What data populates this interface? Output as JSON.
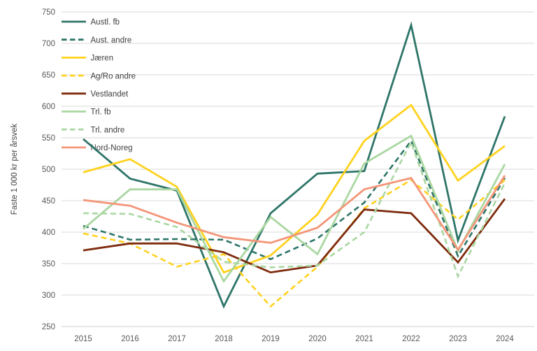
{
  "chart_data": {
    "type": "line",
    "title": "",
    "xlabel": "",
    "ylabel": "Faste 1 000 kr per årsvek",
    "x": [
      2015,
      2016,
      2017,
      2018,
      2019,
      2020,
      2021,
      2022,
      2023,
      2024
    ],
    "ylim": [
      250,
      750
    ],
    "yticks": [
      250,
      300,
      350,
      400,
      450,
      500,
      550,
      600,
      650,
      700,
      750
    ],
    "grid": true,
    "legend_position": "top-left",
    "series": [
      {
        "name": "Austl. fb",
        "color": "#2E7568",
        "dash": "solid",
        "values": [
          548,
          485,
          466,
          282,
          430,
          493,
          497,
          729,
          387,
          584
        ]
      },
      {
        "name": "Aust. andre",
        "color": "#2E7568",
        "dash": "dashed",
        "values": [
          410,
          388,
          389,
          388,
          357,
          390,
          447,
          545,
          362,
          486
        ]
      },
      {
        "name": "Jæren",
        "color": "#FFD21F",
        "dash": "solid",
        "values": [
          495,
          516,
          472,
          336,
          363,
          428,
          545,
          602,
          482,
          537
        ]
      },
      {
        "name": "Ag/Ro andre",
        "color": "#FFD21F",
        "dash": "dashed",
        "values": [
          398,
          382,
          345,
          365,
          282,
          345,
          438,
          483,
          420,
          483
        ]
      },
      {
        "name": "Vestlandet",
        "color": "#7E2B0D",
        "dash": "solid",
        "values": [
          371,
          382,
          382,
          368,
          336,
          347,
          436,
          430,
          352,
          453
        ]
      },
      {
        "name": "Trl. fb",
        "color": "#AAD7A2",
        "dash": "solid",
        "values": [
          405,
          468,
          468,
          322,
          424,
          365,
          509,
          553,
          370,
          508
        ]
      },
      {
        "name": "Trl. andre",
        "color": "#AAD7A2",
        "dash": "dashed",
        "values": [
          430,
          429,
          408,
          353,
          344,
          347,
          400,
          543,
          330,
          478
        ]
      },
      {
        "name": "Nord-Noreg",
        "color": "#F39679",
        "dash": "solid",
        "values": [
          451,
          442,
          415,
          392,
          383,
          407,
          468,
          486,
          372,
          490
        ]
      }
    ]
  }
}
